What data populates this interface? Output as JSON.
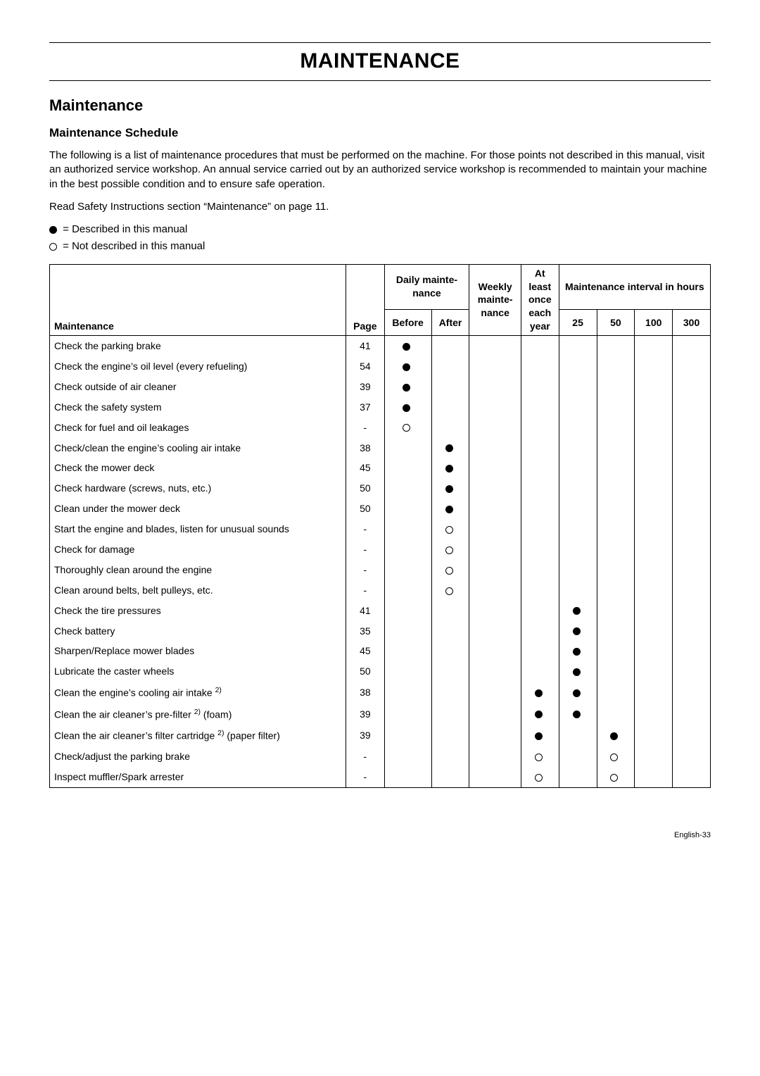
{
  "pageTitle": "MAINTENANCE",
  "sectionTitle": "Maintenance",
  "subsectionTitle": "Maintenance Schedule",
  "intro": "The following is a list of maintenance procedures that must be performed on the machine. For those points not described in this manual, visit an authorized service workshop. An annual service carried out by an authorized service workshop is recommended to maintain your machine in the best possible condition and to ensure safe operation.",
  "readSafety": "Read Safety Instructions section “Maintenance” on page 11.",
  "legendDescribed": " = Described in this manual",
  "legendNotDescribed": " = Not described in this manual",
  "headers": {
    "maintenance": "Maintenance",
    "page": "Page",
    "daily": "Daily mainte-nance",
    "before": "Before",
    "after": "After",
    "weekly": "Weekly mainte-nance",
    "atLeast": "At least once each year",
    "interval": "Maintenance interval in hours",
    "h25": "25",
    "h50": "50",
    "h100": "100",
    "h300": "300"
  },
  "rows": [
    {
      "label": "Check the parking brake",
      "page": "41",
      "before": "filled"
    },
    {
      "label": "Check the engine’s oil level (every refueling)",
      "page": "54",
      "before": "filled"
    },
    {
      "label": "Check outside of air cleaner",
      "page": "39",
      "before": "filled"
    },
    {
      "label": "Check the safety system",
      "page": "37",
      "before": "filled"
    },
    {
      "label": "Check for fuel and oil leakages",
      "page": "-",
      "before": "open"
    },
    {
      "label": "Check/clean the engine’s cooling air intake",
      "page": "38",
      "after": "filled"
    },
    {
      "label": "Check the mower deck",
      "page": "45",
      "after": "filled"
    },
    {
      "label": "Check hardware (screws, nuts, etc.)",
      "page": "50",
      "after": "filled"
    },
    {
      "label": "Clean under the mower deck",
      "page": "50",
      "after": "filled"
    },
    {
      "label": "Start the engine and blades, listen for unusual sounds",
      "page": "-",
      "after": "open"
    },
    {
      "label": "Check for damage",
      "page": "-",
      "after": "open"
    },
    {
      "label": "Thoroughly clean around the engine",
      "page": "-",
      "after": "open"
    },
    {
      "label": "Clean around belts, belt pulleys, etc.",
      "page": "-",
      "after": "open"
    },
    {
      "label": "Check the tire pressures",
      "page": "41",
      "h25": "filled"
    },
    {
      "label": "Check battery",
      "page": "35",
      "h25": "filled"
    },
    {
      "label": "Sharpen/Replace mower blades",
      "page": "45",
      "h25": "filled"
    },
    {
      "label": "Lubricate the caster wheels",
      "page": "50",
      "h25": "filled"
    },
    {
      "labelHtml": "Clean the engine’s cooling air intake <sup>2)</sup>",
      "page": "38",
      "yearly": "filled",
      "h25": "filled"
    },
    {
      "labelHtml": "Clean the air cleaner’s pre-filter <sup>2)</sup> (foam)",
      "page": "39",
      "yearly": "filled",
      "h25": "filled"
    },
    {
      "labelHtml": "Clean the air cleaner’s filter cartridge <sup>2)</sup> (paper filter)",
      "page": "39",
      "yearly": "filled",
      "h50": "filled"
    },
    {
      "label": "Check/adjust the parking brake",
      "page": "-",
      "yearly": "open",
      "h50": "open"
    },
    {
      "label": "Inspect muffler/Spark arrester",
      "page": "-",
      "yearly": "open",
      "h50": "open"
    }
  ],
  "footer": "English-33"
}
